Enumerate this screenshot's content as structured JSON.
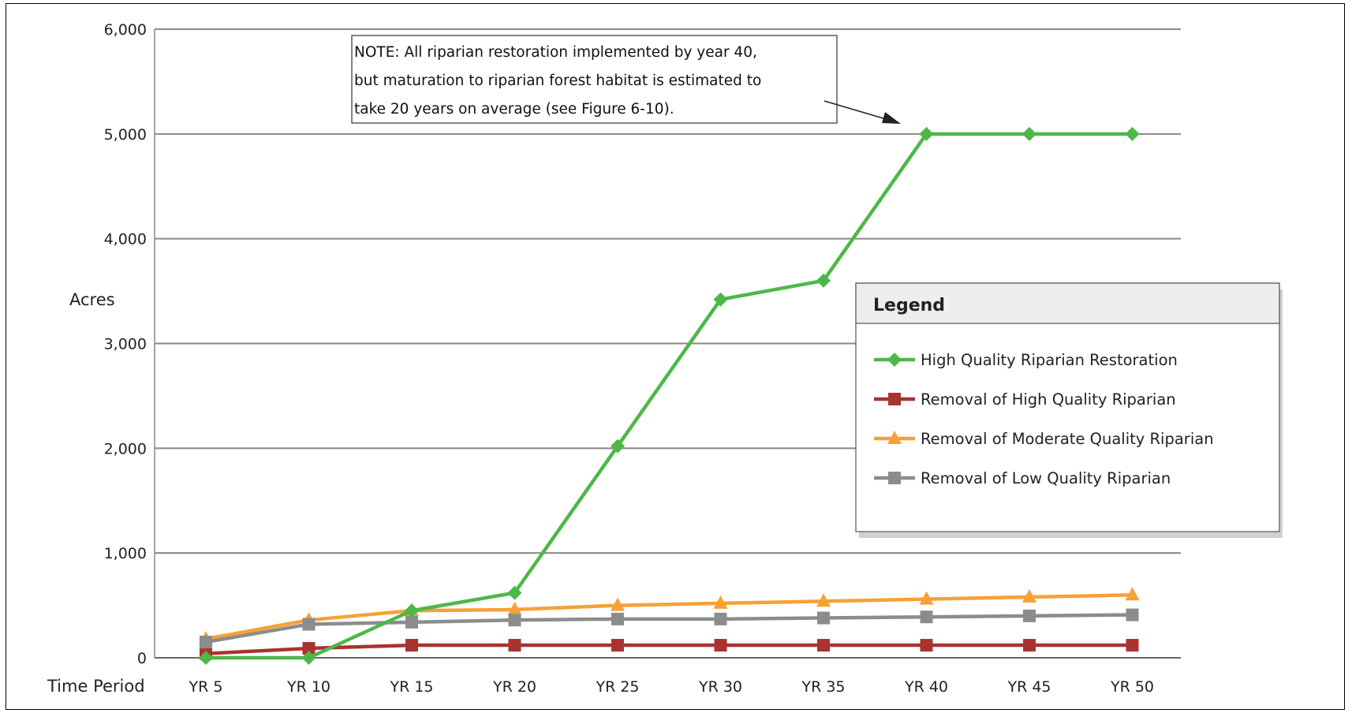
{
  "chart_data": {
    "type": "line",
    "title": "",
    "ylabel": "Acres",
    "xlabel": "Time Period",
    "ylim": [
      0,
      6000
    ],
    "yticks": [
      0,
      1000,
      2000,
      3000,
      4000,
      5000,
      6000
    ],
    "ytick_labels": [
      "0",
      "1,000",
      "2,000",
      "3,000",
      "4,000",
      "5,000",
      "6,000"
    ],
    "categories": [
      "YR 5",
      "YR 10",
      "YR 15",
      "YR 20",
      "YR 25",
      "YR 30",
      "YR 35",
      "YR 40",
      "YR 45",
      "YR 50"
    ],
    "grid": "horizontal",
    "legend_position": "right",
    "series": [
      {
        "name": "High Quality Riparian Restoration",
        "marker": "diamond",
        "color": "#4db848",
        "values": [
          0,
          0,
          450,
          620,
          2020,
          3420,
          3600,
          5000,
          5000,
          5000
        ]
      },
      {
        "name": "Removal of High Quality Riparian",
        "marker": "square",
        "color": "#a93330",
        "values": [
          40,
          90,
          120,
          120,
          120,
          120,
          120,
          120,
          120,
          120
        ]
      },
      {
        "name": "Removal of Moderate Quality Riparian",
        "marker": "triangle",
        "color": "#f7a135",
        "values": [
          180,
          360,
          450,
          460,
          500,
          520,
          540,
          560,
          580,
          600
        ]
      },
      {
        "name": "Removal of Low Quality Riparian",
        "marker": "square",
        "color": "#8c8c8c",
        "values": [
          150,
          320,
          340,
          360,
          370,
          370,
          380,
          390,
          400,
          410
        ]
      }
    ],
    "annotation": {
      "lines": [
        "NOTE: All riparian restoration implemented by year 40,",
        "but maturation to riparian forest habitat is estimated to",
        "take 20 years on average (see Figure 6-10)."
      ],
      "points_to": {
        "category": "YR 40",
        "value": 5000
      }
    },
    "legend_title": "Legend"
  }
}
